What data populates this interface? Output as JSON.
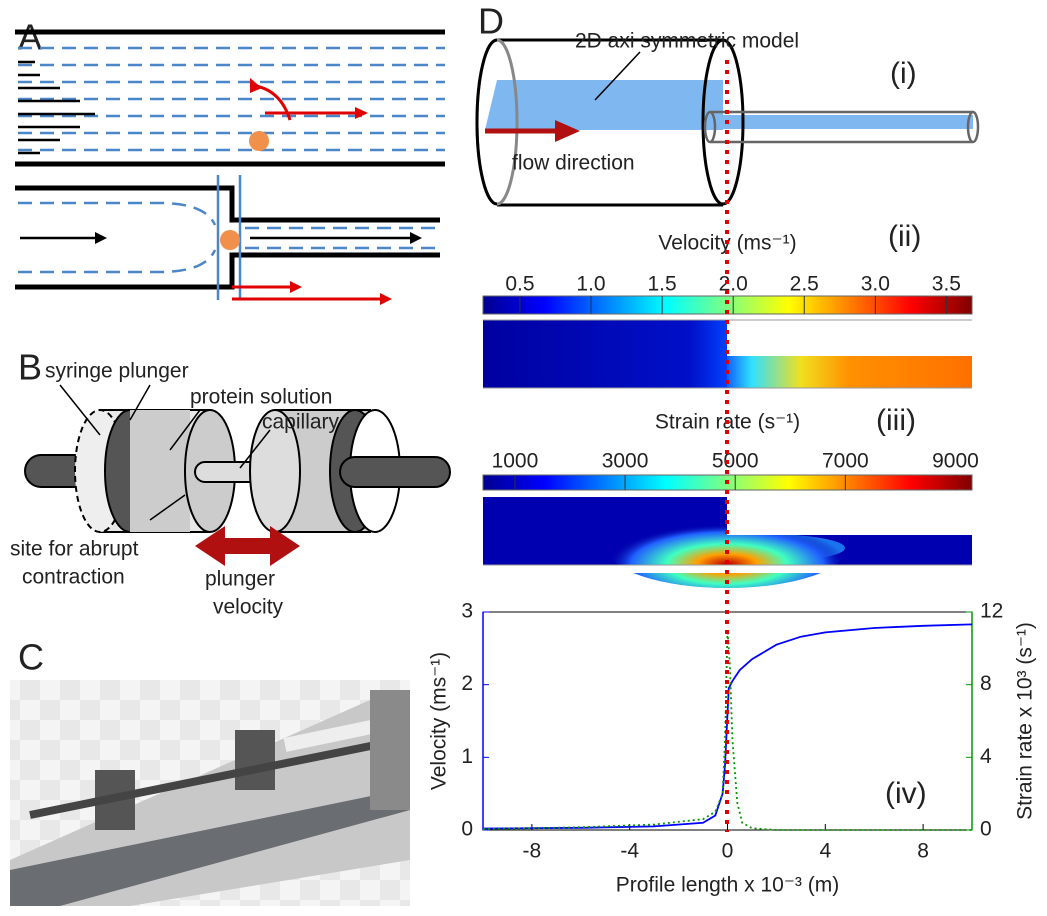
{
  "panels": {
    "A": {
      "label": "A"
    },
    "B": {
      "label": "B",
      "syringe_plunger": "syringe plunger",
      "protein_solution": "protein solution",
      "capillary": "capillary",
      "site": [
        "site for abrupt",
        "contraction"
      ],
      "plunger_velocity": [
        "plunger",
        "velocity"
      ]
    },
    "C": {
      "label": "C"
    },
    "D": {
      "label": "D",
      "model": "2D axi symmetric model",
      "i": "(i)",
      "flow": "flow direction",
      "ii": "(ii)",
      "iii": "(iii)"
    }
  },
  "colorbars": [
    {
      "title": "Velocity (ms⁻¹)",
      "range": [
        0.24,
        3.68
      ],
      "ticks": [
        0.5,
        {
          "value": 1,
          "label": "1.0"
        },
        1.5,
        {
          "value": 2,
          "label": "2.0"
        },
        2.5,
        {
          "value": 3,
          "label": "3.0"
        },
        3.5
      ]
    },
    {
      "title": "Strain rate (s⁻¹)",
      "range": [
        420,
        9300
      ],
      "ticks": [
        1000,
        3000,
        5000,
        7000,
        9000
      ]
    }
  ],
  "chart_data": {
    "type": "line",
    "annotation": "(iv)",
    "x_label": "Profile length x 10⁻³ (m)",
    "y_label": "Velocity (ms⁻¹)",
    "y2_label": "Strain rate x 10³ (s⁻¹)",
    "xlim": [
      -10,
      10
    ],
    "xticks": [
      -8,
      -4,
      0,
      4,
      8
    ],
    "ylim": [
      0,
      3
    ],
    "yticks": [
      0,
      1,
      2,
      3
    ],
    "y2lim": [
      0,
      12
    ],
    "y2ticks": [
      0,
      4,
      8,
      12
    ],
    "series": [
      {
        "color": "#0000ff",
        "style": "solid",
        "x": [
          -10,
          -6,
          -3,
          -1,
          -0.5,
          -0.2,
          -0.1,
          0,
          0.05,
          0.2,
          0.5,
          1,
          2,
          3,
          4,
          6,
          8,
          10
        ],
        "values": [
          0.02,
          0.03,
          0.05,
          0.1,
          0.2,
          0.5,
          0.9,
          1.6,
          1.95,
          2.05,
          2.2,
          2.35,
          2.55,
          2.66,
          2.72,
          2.78,
          2.81,
          2.83
        ]
      },
      {
        "color": "#009900",
        "style": "dotted",
        "axis": "y2",
        "x": [
          -10,
          -6,
          -3,
          -1,
          -0.5,
          -0.2,
          -0.1,
          0,
          0.1,
          0.2,
          0.4,
          0.6,
          1,
          2,
          4,
          10
        ],
        "values": [
          0.05,
          0.15,
          0.3,
          0.6,
          1.0,
          2,
          5,
          11,
          9,
          5,
          1.5,
          0.4,
          0.1,
          0,
          0,
          0
        ]
      }
    ]
  }
}
